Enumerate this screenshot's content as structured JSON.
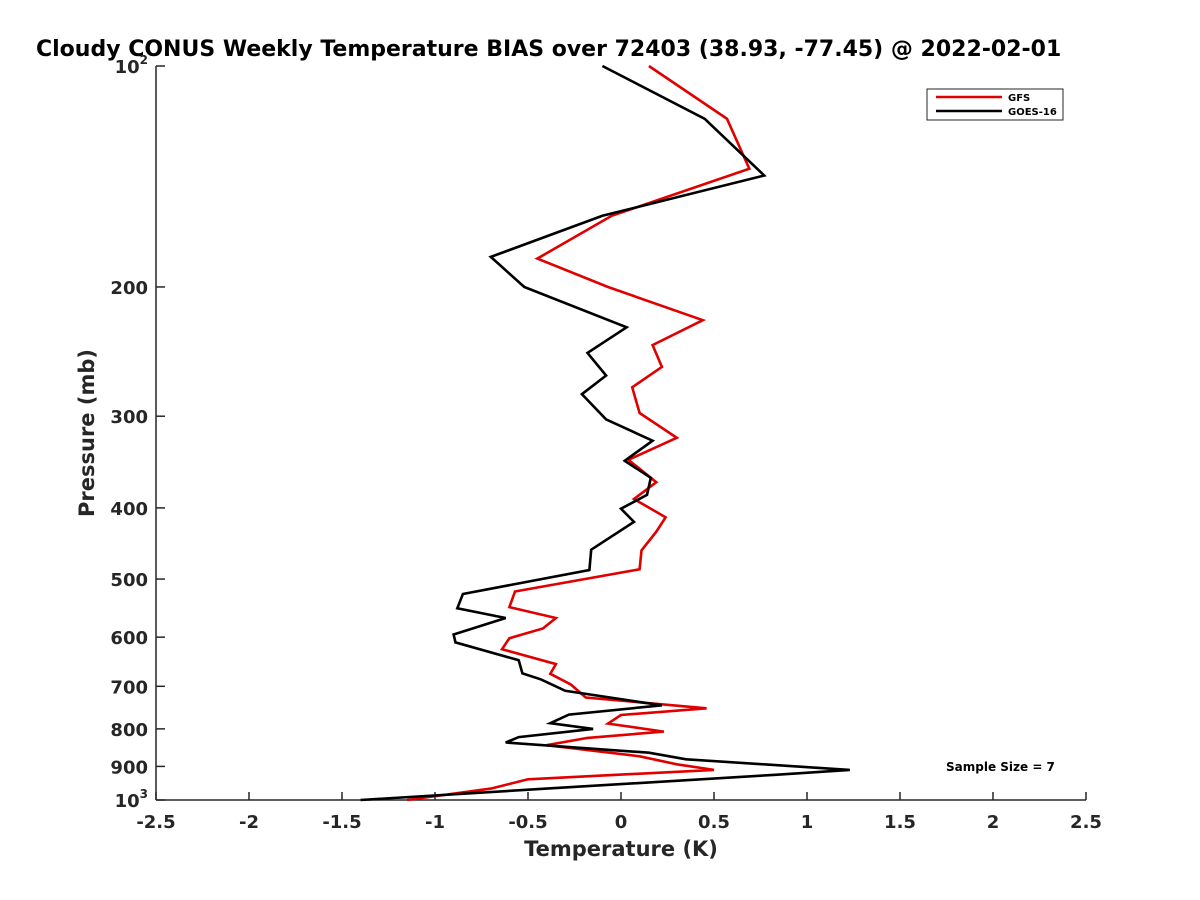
{
  "chart_data": {
    "type": "line",
    "title": "Cloudy CONUS Weekly Temperature BIAS over 72403 (38.93, -77.45) @ 2022-02-01",
    "xlabel": "Temperature (K)",
    "ylabel": "Pressure (mb)",
    "xlim": [
      -2.5,
      2.5
    ],
    "ylim": [
      100,
      1000
    ],
    "y_scale": "log",
    "y_reversed": true,
    "grid": false,
    "legend_position": "top-right",
    "x_ticks": [
      "-2.5",
      "-2",
      "-1.5",
      "-1",
      "-0.5",
      "0",
      "0.5",
      "1",
      "1.5",
      "2",
      "2.5"
    ],
    "x_tick_values": [
      -2.5,
      -2,
      -1.5,
      -1,
      -0.5,
      0,
      0.5,
      1,
      1.5,
      2,
      2.5
    ],
    "y_ticks": [
      {
        "value": 100,
        "base": "10",
        "exp": "2"
      },
      {
        "value": 200,
        "label": "200"
      },
      {
        "value": 300,
        "label": "300"
      },
      {
        "value": 400,
        "label": "400"
      },
      {
        "value": 500,
        "label": "500"
      },
      {
        "value": 600,
        "label": "600"
      },
      {
        "value": 700,
        "label": "700"
      },
      {
        "value": 800,
        "label": "800"
      },
      {
        "value": 900,
        "label": "900"
      },
      {
        "value": 1000,
        "base": "10",
        "exp": "3"
      }
    ],
    "annotation": "Sample Size = 7",
    "series": [
      {
        "name": "GFS",
        "color": "#e00000",
        "points": [
          [
            0.15,
            100
          ],
          [
            0.57,
            118
          ],
          [
            0.69,
            138
          ],
          [
            -0.05,
            160
          ],
          [
            -0.45,
            183
          ],
          [
            -0.07,
            200
          ],
          [
            0.44,
            222
          ],
          [
            0.17,
            240
          ],
          [
            0.22,
            257
          ],
          [
            0.06,
            274
          ],
          [
            0.1,
            297
          ],
          [
            0.3,
            321
          ],
          [
            0.04,
            344
          ],
          [
            0.19,
            369
          ],
          [
            0.07,
            389
          ],
          [
            0.24,
            412
          ],
          [
            0.19,
            431
          ],
          [
            0.11,
            457
          ],
          [
            0.1,
            485
          ],
          [
            -0.57,
            520
          ],
          [
            -0.6,
            546
          ],
          [
            -0.35,
            565
          ],
          [
            -0.42,
            584
          ],
          [
            -0.6,
            602
          ],
          [
            -0.64,
            623
          ],
          [
            -0.35,
            653
          ],
          [
            -0.38,
            673
          ],
          [
            -0.27,
            696
          ],
          [
            -0.19,
            725
          ],
          [
            0.46,
            750
          ],
          [
            0.0,
            766
          ],
          [
            -0.07,
            787
          ],
          [
            0.23,
            807
          ],
          [
            -0.18,
            823
          ],
          [
            -0.4,
            842
          ],
          [
            0.1,
            872
          ],
          [
            0.3,
            894
          ],
          [
            0.5,
            910
          ],
          [
            -0.5,
            937
          ],
          [
            -0.7,
            965
          ],
          [
            -1.15,
            1000
          ]
        ]
      },
      {
        "name": "GOES-16",
        "color": "#000000",
        "points": [
          [
            -0.1,
            100
          ],
          [
            0.45,
            118
          ],
          [
            0.77,
            141
          ],
          [
            -0.1,
            160
          ],
          [
            -0.7,
            182
          ],
          [
            -0.52,
            200
          ],
          [
            0.03,
            227
          ],
          [
            -0.18,
            246
          ],
          [
            -0.08,
            264
          ],
          [
            -0.21,
            280
          ],
          [
            -0.08,
            303
          ],
          [
            0.17,
            324
          ],
          [
            0.02,
            345
          ],
          [
            0.16,
            364
          ],
          [
            0.14,
            384
          ],
          [
            0.0,
            401
          ],
          [
            0.07,
            418
          ],
          [
            -0.16,
            456
          ],
          [
            -0.17,
            486
          ],
          [
            -0.85,
            524
          ],
          [
            -0.88,
            548
          ],
          [
            -0.62,
            565
          ],
          [
            -0.9,
            595
          ],
          [
            -0.89,
            610
          ],
          [
            -0.55,
            645
          ],
          [
            -0.53,
            672
          ],
          [
            -0.43,
            685
          ],
          [
            -0.3,
            710
          ],
          [
            0.22,
            743
          ],
          [
            -0.28,
            765
          ],
          [
            -0.38,
            786
          ],
          [
            -0.15,
            800
          ],
          [
            -0.55,
            821
          ],
          [
            -0.62,
            835
          ],
          [
            0.15,
            862
          ],
          [
            0.35,
            880
          ],
          [
            1.23,
            910
          ],
          [
            0.83,
            924
          ],
          [
            -0.4,
            965
          ],
          [
            -1.4,
            1000
          ]
        ]
      }
    ]
  }
}
